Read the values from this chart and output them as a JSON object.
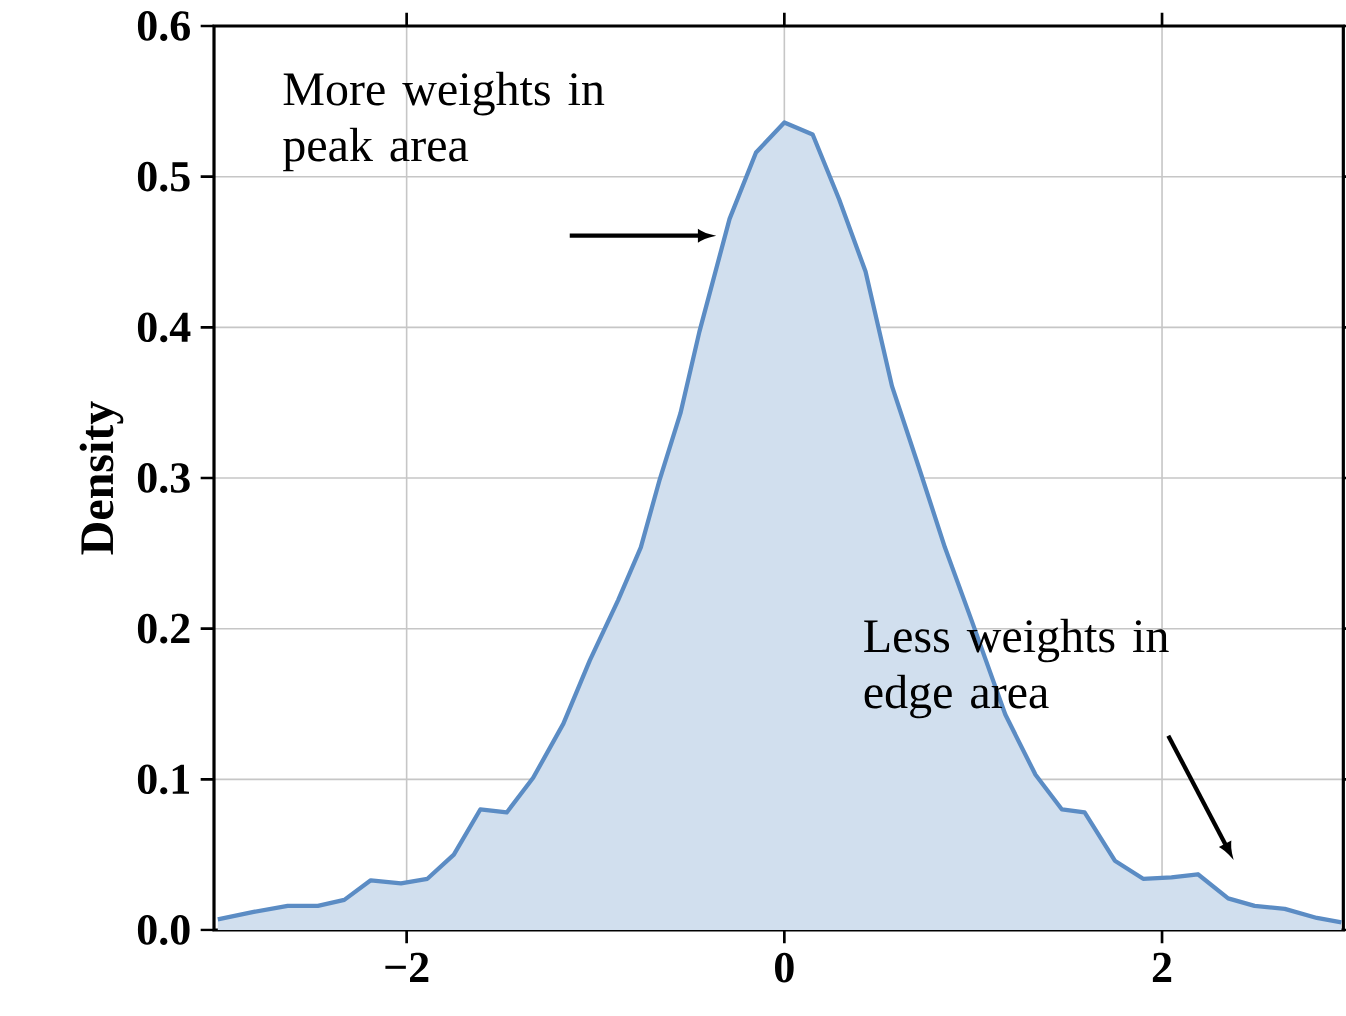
{
  "chart_data": {
    "type": "area",
    "ylabel": "Density",
    "x": [
      -3.0,
      -2.81,
      -2.63,
      -2.47,
      -2.33,
      -2.19,
      -2.03,
      -1.89,
      -1.75,
      -1.61,
      -1.47,
      -1.33,
      -1.17,
      -1.03,
      -0.88,
      -0.76,
      -0.66,
      -0.55,
      -0.45,
      -0.29,
      -0.15,
      0.0,
      0.15,
      0.29,
      0.43,
      0.57,
      0.71,
      0.85,
      0.99,
      1.17,
      1.33,
      1.47,
      1.59,
      1.75,
      1.9,
      2.05,
      2.19,
      2.35,
      2.49,
      2.65,
      2.82,
      2.95
    ],
    "values": [
      0.007,
      0.012,
      0.016,
      0.016,
      0.02,
      0.033,
      0.031,
      0.034,
      0.05,
      0.08,
      0.078,
      0.101,
      0.137,
      0.179,
      0.219,
      0.254,
      0.299,
      0.343,
      0.397,
      0.472,
      0.516,
      0.536,
      0.528,
      0.485,
      0.437,
      0.361,
      0.308,
      0.254,
      0.206,
      0.143,
      0.103,
      0.08,
      0.078,
      0.046,
      0.034,
      0.035,
      0.037,
      0.021,
      0.016,
      0.014,
      0.008,
      0.005
    ],
    "color": "#5b8cc4",
    "xlim": [
      -3.02,
      2.96
    ],
    "ylim": [
      0,
      0.6
    ],
    "xticks": [
      {
        "value": -2,
        "label": "−2"
      },
      0,
      2
    ],
    "yticks": [
      {
        "value": 0,
        "label": "0.0"
      },
      0.1,
      0.2,
      0.3,
      0.4,
      0.5,
      0.6
    ],
    "grid": true,
    "annotations": [
      "More weights in peak area",
      "Less weights in edge area"
    ]
  }
}
